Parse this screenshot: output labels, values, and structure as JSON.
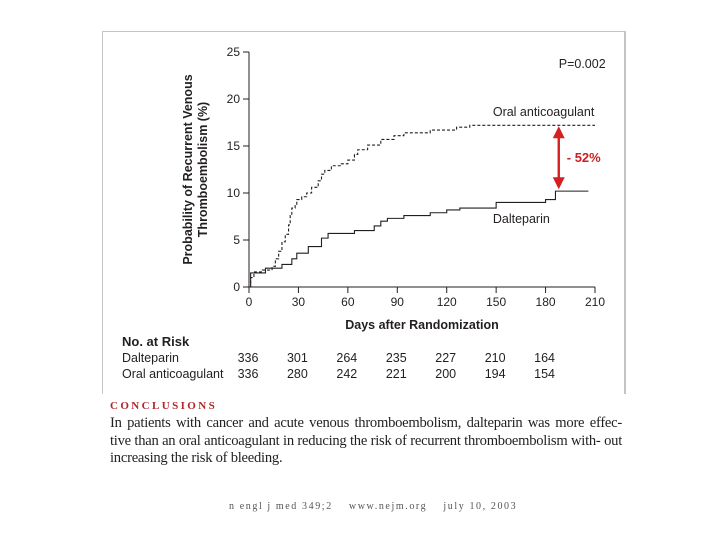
{
  "chart_data": {
    "type": "line",
    "title": "",
    "xlabel": "Days after Randomization",
    "ylabel_line1": "Probability of Recurrent Venous",
    "ylabel_line2": "Thromboembolism (%)",
    "xlim": [
      0,
      210
    ],
    "ylim": [
      0,
      25
    ],
    "x_ticks": [
      0,
      30,
      60,
      90,
      120,
      150,
      180,
      210
    ],
    "y_ticks": [
      0,
      5,
      10,
      15,
      20,
      25
    ],
    "p_value": "P=0.002",
    "grid": false,
    "series": [
      {
        "name": "Oral anticoagulant",
        "style": "dashed",
        "steps": [
          [
            0,
            0
          ],
          [
            1,
            1
          ],
          [
            3,
            1.6
          ],
          [
            8,
            1.8
          ],
          [
            14,
            2.2
          ],
          [
            16,
            3
          ],
          [
            18,
            3.8
          ],
          [
            20,
            4.8
          ],
          [
            22,
            5.6
          ],
          [
            24,
            6.6
          ],
          [
            25,
            7.6
          ],
          [
            26,
            8.4
          ],
          [
            28,
            8.8
          ],
          [
            29,
            9.3
          ],
          [
            32,
            9.6
          ],
          [
            35,
            10
          ],
          [
            38,
            10.6
          ],
          [
            42,
            11.3
          ],
          [
            44,
            12
          ],
          [
            46,
            12.4
          ],
          [
            50,
            12.9
          ],
          [
            56,
            13.1
          ],
          [
            60,
            13.5
          ],
          [
            64,
            14.1
          ],
          [
            66,
            14.6
          ],
          [
            72,
            15.1
          ],
          [
            80,
            15.7
          ],
          [
            88,
            16.1
          ],
          [
            94,
            16.4
          ],
          [
            110,
            16.7
          ],
          [
            126,
            17
          ],
          [
            134,
            17.2
          ],
          [
            210,
            17.2
          ]
        ],
        "end_x": 210
      },
      {
        "name": "Dalteparin",
        "style": "solid",
        "steps": [
          [
            0,
            0
          ],
          [
            1,
            1.5
          ],
          [
            10,
            2
          ],
          [
            20,
            2.4
          ],
          [
            26,
            3
          ],
          [
            29,
            3.6
          ],
          [
            36,
            4.3
          ],
          [
            44,
            5.2
          ],
          [
            48,
            5.7
          ],
          [
            64,
            6
          ],
          [
            76,
            6.5
          ],
          [
            80,
            7
          ],
          [
            84,
            7.3
          ],
          [
            94,
            7.6
          ],
          [
            110,
            7.9
          ],
          [
            120,
            8.2
          ],
          [
            128,
            8.4
          ],
          [
            150,
            9
          ],
          [
            180,
            9.3
          ],
          [
            186,
            10.2
          ],
          [
            206,
            10.2
          ]
        ],
        "end_x": 206
      }
    ],
    "series_labels": [
      "Oral anticoagulant",
      "Dalteparin"
    ],
    "annotation": {
      "text": "- 52%",
      "color": "#cc1f1f",
      "x": 188,
      "from_y": 17.0,
      "to_y": 10.5
    },
    "risk_table": {
      "header": "No. at Risk",
      "days": [
        0,
        30,
        60,
        90,
        120,
        150,
        180
      ],
      "rows": [
        {
          "label": "Dalteparin",
          "values": [
            336,
            301,
            264,
            235,
            227,
            210,
            164
          ]
        },
        {
          "label": "Oral anticoagulant",
          "values": [
            336,
            280,
            242,
            221,
            200,
            194,
            154
          ]
        }
      ]
    }
  },
  "conclusions": {
    "heading": "Conclusions",
    "line1": "In patients with cancer and acute venous thromboembolism, dalteparin was more effec-",
    "line2": "tive than an oral anticoagulant in reducing the risk of recurrent thromboembolism with-",
    "line3": "out increasing the risk of bleeding."
  },
  "footer": {
    "journal": "n engl j med 349;2",
    "site": "www.nejm.org",
    "date": "july 10, 2003"
  },
  "colors": {
    "axis": "#231f20",
    "heading_red": "#b0262c",
    "arrow_red": "#d42020"
  }
}
